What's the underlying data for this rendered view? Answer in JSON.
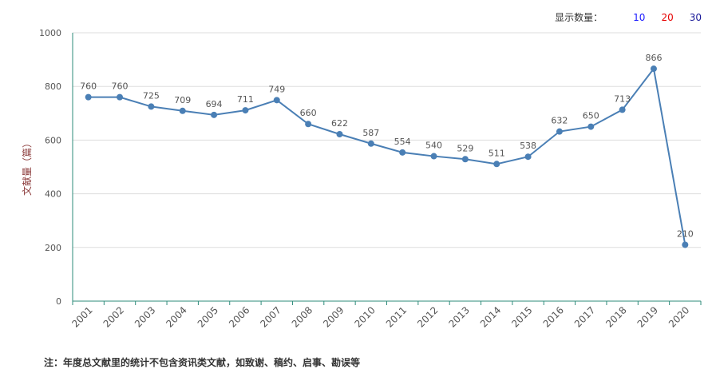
{
  "count_selector": {
    "label": "显示数量：",
    "options": [
      {
        "label": "10",
        "color": "#1a1aff"
      },
      {
        "label": "20",
        "color": "#e60000"
      },
      {
        "label": "30",
        "color": "#1a1a99"
      }
    ]
  },
  "note": "注：年度总文献里的统计不包含资讯类文献，如致谢、稿约、启事、勘误等",
  "colors": {
    "line": "#4a7fb5",
    "axis": "#2e8b7a",
    "grid": "#dddddd",
    "text": "#555555"
  },
  "chart_data": {
    "type": "line",
    "ylabel": "文献量（篇）",
    "ylim": [
      0,
      1000
    ],
    "yticks": [
      0,
      200,
      400,
      600,
      800,
      1000
    ],
    "grid": true,
    "categories": [
      "2001",
      "2002",
      "2003",
      "2004",
      "2005",
      "2006",
      "2007",
      "2008",
      "2009",
      "2010",
      "2011",
      "2012",
      "2013",
      "2014",
      "2015",
      "2016",
      "2017",
      "2018",
      "2019",
      "2020"
    ],
    "values": [
      760,
      760,
      725,
      709,
      694,
      711,
      749,
      660,
      622,
      587,
      554,
      540,
      529,
      511,
      538,
      632,
      650,
      713,
      866,
      210
    ]
  }
}
